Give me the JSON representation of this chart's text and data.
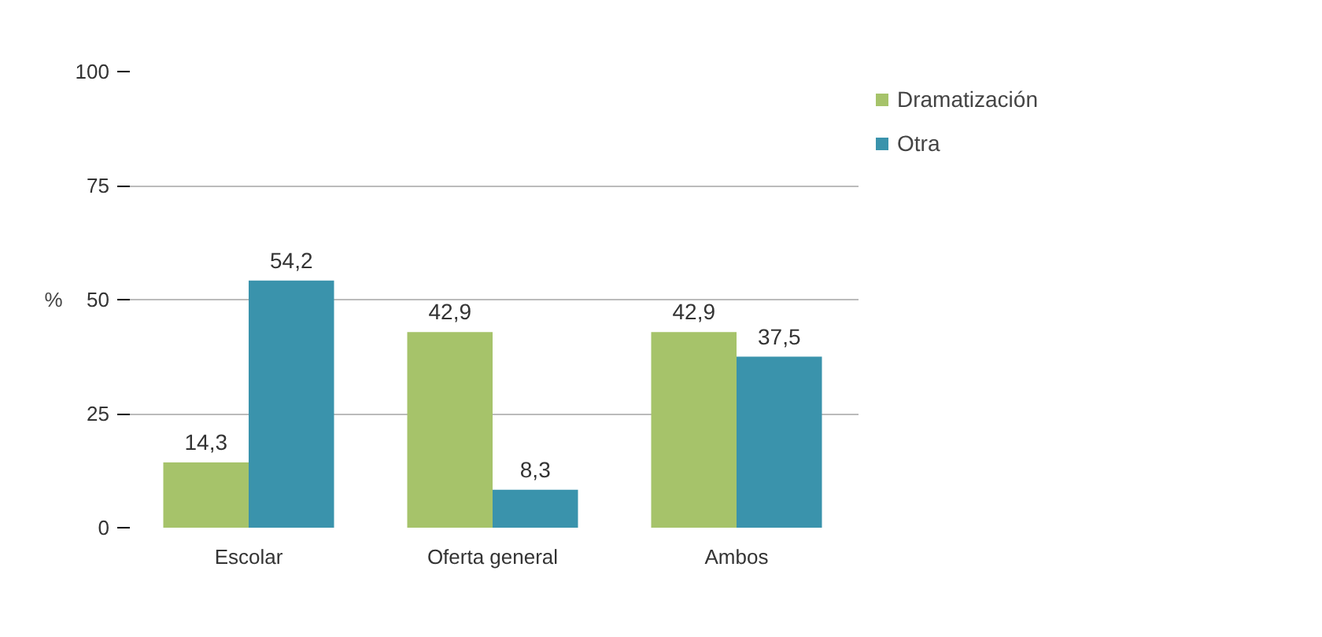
{
  "chart_data": {
    "type": "bar",
    "ylabel": "%",
    "categories": [
      "Escolar",
      "Oferta general",
      "Ambos"
    ],
    "series": [
      {
        "name": "Dramatización",
        "color": "#a6c36a",
        "values": [
          14.3,
          42.9,
          42.9
        ],
        "value_labels": [
          "14,3",
          "42,9",
          "42,9"
        ]
      },
      {
        "name": "Otra",
        "color": "#3a93ac",
        "values": [
          54.2,
          8.3,
          37.5
        ],
        "value_labels": [
          "54,2",
          "8,3",
          "37,5"
        ]
      }
    ],
    "ylim": [
      0,
      100
    ],
    "yticks": [
      0,
      25,
      50,
      75,
      100
    ],
    "grid": "y",
    "legend": "right"
  }
}
